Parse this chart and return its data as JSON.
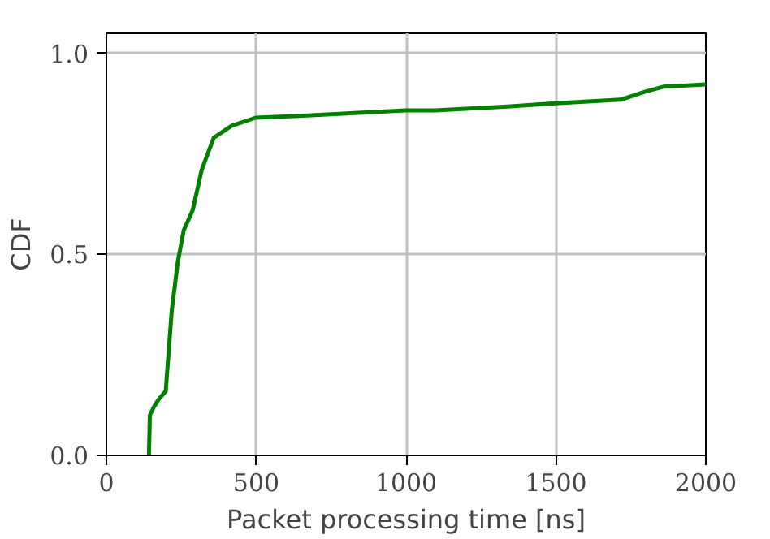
{
  "chart_data": {
    "type": "line",
    "xlabel": "Packet processing time [ns]",
    "ylabel": "CDF",
    "series": [
      {
        "color": "#008000",
        "x": [
          142,
          145,
          158,
          175,
          198,
          218,
          238,
          258,
          288,
          318,
          358,
          418,
          498,
          658,
          998,
          1098,
          1338,
          1498,
          1718,
          1798,
          1858,
          2000
        ],
        "values": [
          0,
          0.1,
          0.12,
          0.14,
          0.16,
          0.36,
          0.48,
          0.56,
          0.61,
          0.71,
          0.79,
          0.82,
          0.84,
          0.845,
          0.858,
          0.858,
          0.868,
          0.876,
          0.885,
          0.905,
          0.917,
          0.923
        ]
      }
    ],
    "xlim": [
      0,
      2000
    ],
    "ylim": [
      0,
      1.05
    ],
    "xticks": [
      0,
      500,
      1000,
      1500,
      2000
    ],
    "yticks": [
      {
        "value": 0,
        "label": "0.0"
      },
      {
        "value": 0.5,
        "label": "0.5"
      },
      {
        "value": 1,
        "label": "1.0"
      }
    ],
    "grid": true
  }
}
